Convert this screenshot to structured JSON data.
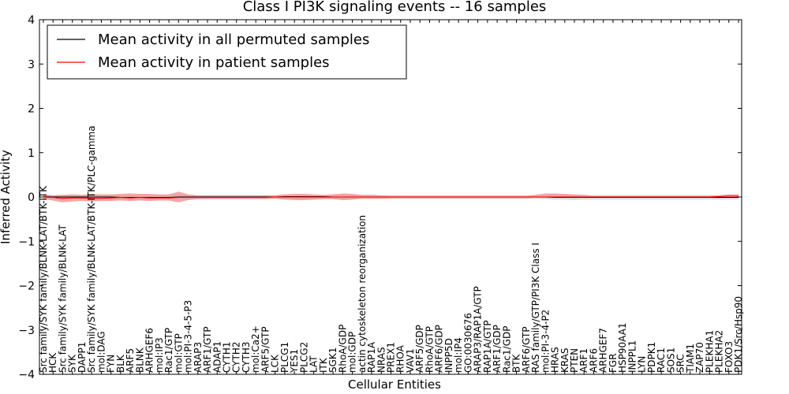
{
  "chart_data": {
    "type": "line",
    "title": "Class I PI3K signaling events -- 16 samples",
    "xlabel": "Cellular Entities",
    "ylabel": "Inferred Activity",
    "ylim": [
      -4,
      4
    ],
    "yticks": [
      -4,
      -3,
      -2,
      -1,
      0,
      1,
      2,
      3,
      4
    ],
    "ytick_labels": [
      "−4",
      "−3",
      "−2",
      "−1",
      "0",
      "1",
      "2",
      "3",
      "4"
    ],
    "grid": false,
    "legend_position": "top-left",
    "colors": {
      "permuted_line": "#000000",
      "patient_line": "#ff0000",
      "patient_band": "#f08080",
      "permuted_band": "#bbbbbb"
    },
    "categories": [
      "Src family/SYK family/BLNK-LAT/BTK-ITK",
      "HCK",
      "Src family/SYK family/BLNK-LAT",
      "SYK",
      "DAPP1",
      "Src family/SYK family/BLNK-LAT/BTK-ITK/PLC-gamma",
      "mol:DAG",
      "FYN",
      "BLK",
      "ARF5",
      "BLNK",
      "ARHGEF6",
      "mol:IP3",
      "Rac1/GTP",
      "mol:GTP",
      "mol:PI-3-4-5-P3",
      "ARAP3",
      "ARF1/GTP",
      "ADAP1",
      "CYTH1",
      "CYTH2",
      "CYTH3",
      "mol:Ca2+",
      "ARF5/GTP",
      "LCK",
      "PLCG1",
      "YES1",
      "PLCG2",
      "LAT",
      "ITK",
      "SGK1",
      "RhoA/GDP",
      "mol:GDP",
      "actin cytoskeleton reorganization",
      "RAP1A",
      "NRAS",
      "PREX1",
      "RHOA",
      "VAV1",
      "ARF5/GDP",
      "RhoA/GTP",
      "ARF6/GDP",
      "INPP5D",
      "mol:IP4",
      "GO:0030676",
      "ARAP3/RAP1A/GTP",
      "RAP1A/GTP",
      "ARF1/GDP",
      "Rac1/GDP",
      "BTK",
      "ARF6/GTP",
      "RAS family/GTP/PI3K Class I",
      "mol:PI-3-4-P2",
      "HRAS",
      "KRAS",
      "PTEN",
      "ARF1",
      "ARF6",
      "ARHGEF7",
      "FGR",
      "HSP90AA1",
      "INPPL1",
      "LYN",
      "PDPK1",
      "RAC1",
      "SOS1",
      "SRC",
      "TIAM1",
      "ZAP70",
      "PLEKHA1",
      "PLEKHA2",
      "FOXO3",
      "PDK1/Src/Hsp90"
    ],
    "series": [
      {
        "name": "Mean activity in all permuted samples",
        "values": [
          0.01,
          0.0,
          0.0,
          0.0,
          0.0,
          0.0,
          0.0,
          0.0,
          -0.01,
          -0.01,
          -0.01,
          -0.01,
          -0.01,
          -0.01,
          0.0,
          0.0,
          0.0,
          0.0,
          0.0,
          0.0,
          0.0,
          0.0,
          0.0,
          0.0,
          0.0,
          0.01,
          0.01,
          0.01,
          0.01,
          0.01,
          0.0,
          0.0,
          0.0,
          0.0,
          0.0,
          0.0,
          0.0,
          0.0,
          0.0,
          0.0,
          0.0,
          0.0,
          0.0,
          0.0,
          0.0,
          0.0,
          0.0,
          0.0,
          0.0,
          0.0,
          0.0,
          0.0,
          0.0,
          -0.01,
          -0.01,
          -0.01,
          -0.01,
          -0.01,
          -0.01,
          -0.01,
          -0.01,
          -0.01,
          -0.01,
          -0.01,
          -0.01,
          -0.01,
          -0.01,
          -0.01,
          -0.01,
          -0.01,
          -0.01,
          -0.01,
          -0.01
        ],
        "lower": [
          -0.03,
          -0.04,
          -0.03,
          -0.04,
          -0.04,
          -0.04,
          -0.04,
          -0.05,
          -0.05,
          -0.06,
          -0.05,
          -0.06,
          -0.05,
          -0.05,
          -0.04,
          -0.04,
          -0.04,
          -0.04,
          -0.04,
          -0.04,
          -0.04,
          -0.04,
          -0.04,
          -0.04,
          -0.03,
          -0.04,
          -0.04,
          -0.04,
          -0.04,
          -0.04,
          -0.04,
          -0.04,
          -0.04,
          -0.04,
          -0.04,
          -0.04,
          -0.04,
          -0.04,
          -0.04,
          -0.04,
          -0.04,
          -0.04,
          -0.04,
          -0.04,
          -0.04,
          -0.04,
          -0.04,
          -0.04,
          -0.04,
          -0.04,
          -0.04,
          -0.04,
          -0.05,
          -0.06,
          -0.06,
          -0.07,
          -0.06,
          -0.06,
          -0.06,
          -0.06,
          -0.06,
          -0.06,
          -0.06,
          -0.06,
          -0.06,
          -0.06,
          -0.06,
          -0.06,
          -0.06,
          -0.06,
          -0.06,
          -0.06,
          -0.06
        ],
        "upper": [
          0.04,
          0.03,
          0.03,
          0.03,
          0.03,
          0.03,
          0.03,
          0.03,
          0.02,
          0.02,
          0.02,
          0.02,
          0.02,
          0.02,
          0.03,
          0.03,
          0.03,
          0.03,
          0.03,
          0.03,
          0.03,
          0.03,
          0.03,
          0.03,
          0.03,
          0.04,
          0.04,
          0.04,
          0.04,
          0.04,
          0.03,
          0.03,
          0.03,
          0.03,
          0.03,
          0.03,
          0.03,
          0.03,
          0.03,
          0.03,
          0.03,
          0.03,
          0.03,
          0.03,
          0.03,
          0.03,
          0.03,
          0.03,
          0.03,
          0.03,
          0.03,
          0.03,
          0.03,
          0.03,
          0.03,
          0.03,
          0.03,
          0.03,
          0.03,
          0.03,
          0.03,
          0.03,
          0.03,
          0.03,
          0.03,
          0.03,
          0.03,
          0.03,
          0.03,
          0.03,
          0.03,
          0.03,
          0.03
        ]
      },
      {
        "name": "Mean activity in patient samples",
        "values": [
          0.0,
          -0.01,
          -0.03,
          -0.02,
          -0.02,
          -0.03,
          -0.03,
          -0.02,
          -0.01,
          -0.02,
          -0.01,
          -0.02,
          -0.02,
          -0.02,
          -0.01,
          -0.01,
          -0.01,
          -0.01,
          -0.01,
          -0.01,
          -0.01,
          -0.01,
          -0.01,
          -0.01,
          0.0,
          0.0,
          0.0,
          0.0,
          0.0,
          0.0,
          0.0,
          0.0,
          0.0,
          0.0,
          0.0,
          0.0,
          0.0,
          0.0,
          0.0,
          0.0,
          0.0,
          0.0,
          0.0,
          0.0,
          0.0,
          0.0,
          0.0,
          0.0,
          0.0,
          0.0,
          0.0,
          0.0,
          0.0,
          0.0,
          0.0,
          0.0,
          0.0,
          0.0,
          0.0,
          0.0,
          0.0,
          0.0,
          0.0,
          0.0,
          0.0,
          0.0,
          0.0,
          0.0,
          0.0,
          0.0,
          0.01,
          0.02,
          0.02
        ],
        "lower": [
          -0.05,
          -0.08,
          -0.12,
          -0.1,
          -0.09,
          -0.1,
          -0.09,
          -0.09,
          -0.08,
          -0.09,
          -0.08,
          -0.09,
          -0.08,
          -0.08,
          -0.12,
          -0.07,
          -0.05,
          -0.05,
          -0.05,
          -0.05,
          -0.05,
          -0.05,
          -0.05,
          -0.05,
          -0.04,
          -0.06,
          -0.07,
          -0.07,
          -0.06,
          -0.05,
          -0.05,
          -0.07,
          -0.06,
          -0.04,
          -0.04,
          -0.04,
          -0.03,
          -0.03,
          -0.03,
          -0.03,
          -0.03,
          -0.03,
          -0.03,
          -0.03,
          -0.03,
          -0.03,
          -0.03,
          -0.03,
          -0.03,
          -0.03,
          -0.03,
          -0.02,
          -0.02,
          -0.02,
          -0.02,
          -0.02,
          -0.02,
          -0.02,
          -0.02,
          -0.02,
          -0.02,
          -0.02,
          -0.02,
          -0.02,
          -0.02,
          -0.02,
          -0.02,
          -0.02,
          -0.02,
          -0.02,
          -0.02,
          -0.02,
          -0.02
        ],
        "upper": [
          0.06,
          0.04,
          0.05,
          0.06,
          0.05,
          0.07,
          0.06,
          0.06,
          0.07,
          0.08,
          0.07,
          0.07,
          0.06,
          0.06,
          0.12,
          0.06,
          0.04,
          0.04,
          0.04,
          0.04,
          0.04,
          0.04,
          0.04,
          0.04,
          0.04,
          0.06,
          0.07,
          0.07,
          0.06,
          0.05,
          0.06,
          0.08,
          0.07,
          0.05,
          0.05,
          0.04,
          0.03,
          0.03,
          0.03,
          0.03,
          0.03,
          0.03,
          0.03,
          0.03,
          0.03,
          0.03,
          0.03,
          0.03,
          0.03,
          0.03,
          0.03,
          0.05,
          0.08,
          0.08,
          0.07,
          0.06,
          0.05,
          0.03,
          0.03,
          0.03,
          0.03,
          0.03,
          0.03,
          0.03,
          0.03,
          0.03,
          0.03,
          0.03,
          0.03,
          0.03,
          0.04,
          0.06,
          0.06
        ]
      }
    ]
  }
}
